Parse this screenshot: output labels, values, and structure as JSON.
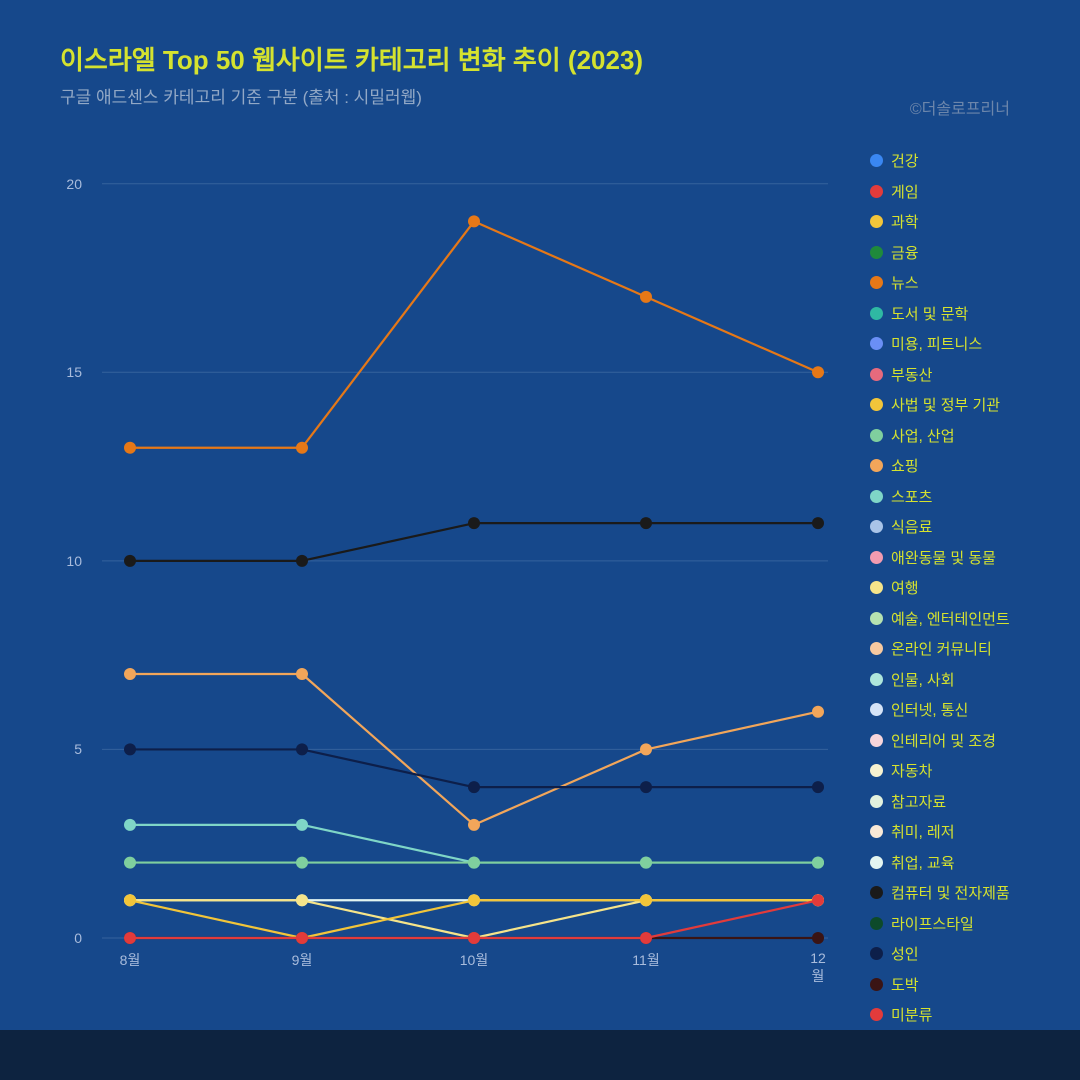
{
  "title": "이스라엘 Top 50 웹사이트 카테고리 변화 추이 (2023)",
  "subtitle": "구글 애드센스 카테고리 기준 구분 (출처 : 시밀러웹)",
  "credit": "©더솔로프리너",
  "chart": {
    "type": "line",
    "background_color": "#16488b",
    "grid_color": "#35629c",
    "axis_label_color": "#a9bcdc",
    "title_color": "#d5e22f",
    "legend_text_color": "#d5e22f",
    "ylim": [
      0,
      21
    ],
    "yticks": [
      0,
      5,
      10,
      15,
      20
    ],
    "x_categories": [
      "8월",
      "9월",
      "10월",
      "11월",
      "12월"
    ],
    "marker_radius": 6,
    "line_width": 2.2,
    "legend": [
      {
        "label": "건강",
        "color": "#3a87f2"
      },
      {
        "label": "게임",
        "color": "#e23b3b"
      },
      {
        "label": "과학",
        "color": "#f2c53a"
      },
      {
        "label": "금융",
        "color": "#1f8a3b"
      },
      {
        "label": "뉴스",
        "color": "#e67817"
      },
      {
        "label": "도서 및 문학",
        "color": "#2fb9a3"
      },
      {
        "label": "미용, 피트니스",
        "color": "#6a8ff5"
      },
      {
        "label": "부동산",
        "color": "#e66a7d"
      },
      {
        "label": "사법 및 정부 기관",
        "color": "#f2c53a"
      },
      {
        "label": "사업, 산업",
        "color": "#7fcf9e"
      },
      {
        "label": "쇼핑",
        "color": "#f2a65a"
      },
      {
        "label": "스포츠",
        "color": "#7fd6c7"
      },
      {
        "label": "식음료",
        "color": "#a9c4e8"
      },
      {
        "label": "애완동물 및 동물",
        "color": "#f29bb0"
      },
      {
        "label": "여행",
        "color": "#f5e48a"
      },
      {
        "label": "예술, 엔터테인먼트",
        "color": "#b6e2b0"
      },
      {
        "label": "온라인 커뮤니티",
        "color": "#f7c9a0"
      },
      {
        "label": "인물, 사회",
        "color": "#aee6db"
      },
      {
        "label": "인터넷, 통신",
        "color": "#d5e3f7"
      },
      {
        "label": "인테리어 및 조경",
        "color": "#f7d5db"
      },
      {
        "label": "자동차",
        "color": "#f7f2d0"
      },
      {
        "label": "참고자료",
        "color": "#e3f2de"
      },
      {
        "label": "취미, 레저",
        "color": "#f9e9d7"
      },
      {
        "label": "취업, 교육",
        "color": "#e3f5f1"
      },
      {
        "label": "컴퓨터 및 전자제품",
        "color": "#1a1a1a"
      },
      {
        "label": "라이프스타일",
        "color": "#0d4a2a"
      },
      {
        "label": "성인",
        "color": "#0d1f4a"
      },
      {
        "label": "도박",
        "color": "#3a1414"
      },
      {
        "label": "미분류",
        "color": "#e23b3b"
      }
    ],
    "series": [
      {
        "name": "뉴스",
        "color": "#e67817",
        "values": [
          13,
          13,
          19,
          17,
          15
        ]
      },
      {
        "name": "컴퓨터 및 전자제품",
        "color": "#1a1a1a",
        "values": [
          10,
          10,
          11,
          11,
          11
        ]
      },
      {
        "name": "쇼핑",
        "color": "#f2a65a",
        "values": [
          7,
          7,
          3,
          5,
          6
        ]
      },
      {
        "name": "성인",
        "color": "#0d1f4a",
        "values": [
          5,
          5,
          4,
          4,
          4
        ]
      },
      {
        "name": "스포츠",
        "color": "#7fd6c7",
        "values": [
          3,
          3,
          2,
          2,
          2
        ]
      },
      {
        "name": "사업, 산업",
        "color": "#7fcf9e",
        "values": [
          2,
          2,
          2,
          2,
          2
        ]
      },
      {
        "name": "취업, 교육",
        "color": "#e3f5f1",
        "values": [
          1,
          1,
          1,
          1,
          1
        ]
      },
      {
        "name": "여행",
        "color": "#f5e48a",
        "values": [
          1,
          1,
          0,
          1,
          1
        ]
      },
      {
        "name": "사법 및 정부 기관",
        "color": "#f2c53a",
        "values": [
          1,
          0,
          1,
          1,
          1
        ]
      },
      {
        "name": "도박",
        "color": "#3a1414",
        "values": [
          0,
          0,
          0,
          0,
          0
        ]
      },
      {
        "name": "미분류",
        "color": "#e23b3b",
        "values": [
          0,
          0,
          0,
          0,
          1
        ]
      }
    ]
  }
}
